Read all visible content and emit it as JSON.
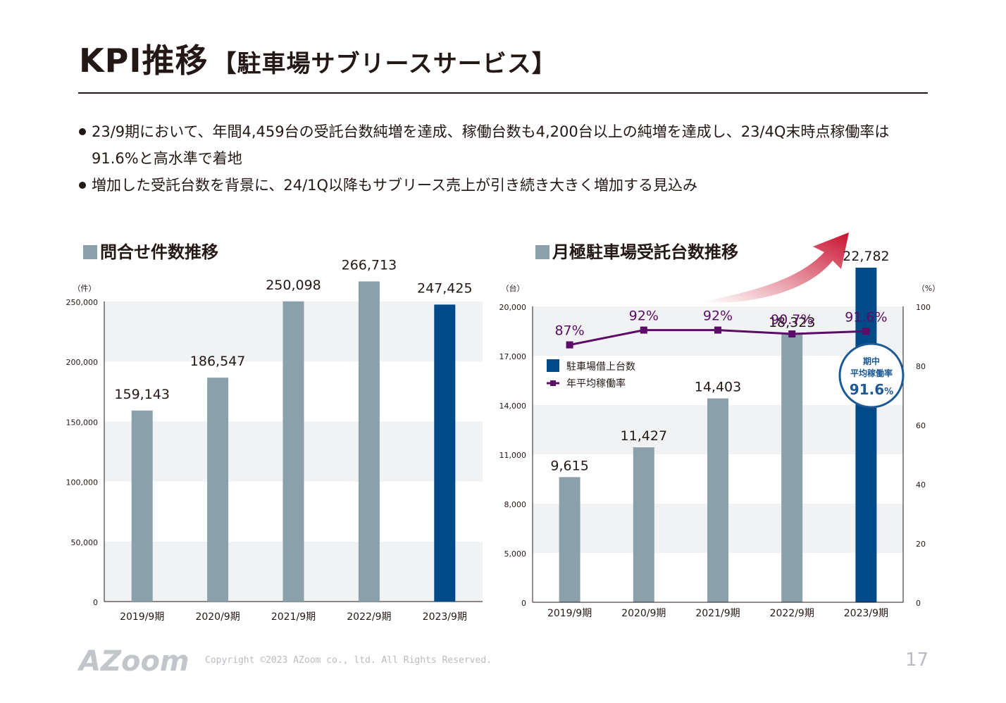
{
  "header": {
    "title_main": "KPI推移",
    "title_sub": "【駐車場サブリースサービス】"
  },
  "bullets": [
    "23/9期において、年間4,459台の受託台数純増を達成、稼働台数も4,200台以上の純増を達成し、23/4Q末時点稼働率は91.6%と高水準で着地",
    "増加した受託台数を背景に、24/1Q以降もサブリース売上が引き続き大きく増加する見込み"
  ],
  "colors": {
    "bar_past": "#8aa0aa",
    "bar_current": "#004a87",
    "line": "#5b0c66",
    "arrow": "#c8102e",
    "band": "#f1f2f4",
    "badge": "#1c5a96"
  },
  "chart_data": [
    {
      "type": "bar",
      "title": "問合せ件数推移",
      "unit_label": "（件）",
      "categories": [
        "2019/9期",
        "2020/9期",
        "2021/9期",
        "2022/9期",
        "2023/9期"
      ],
      "values": [
        159143,
        186547,
        250098,
        266713,
        247425
      ],
      "value_labels": [
        "159,143",
        "186,547",
        "250,098",
        "266,713",
        "247,425"
      ],
      "ylim": [
        0,
        250000
      ],
      "yticks": [
        "0",
        "50,000",
        "100,000",
        "150,000",
        "200,000",
        "250,000"
      ],
      "highlight_index": 4
    },
    {
      "type": "bar",
      "title": "月極駐車場受託台数推移",
      "unit_label_left": "（台）",
      "unit_label_right": "（%）",
      "categories": [
        "2019/9期",
        "2020/9期",
        "2021/9期",
        "2022/9期",
        "2023/9期"
      ],
      "series": [
        {
          "name": "駐車場借上台数",
          "type": "bar",
          "values": [
            9615,
            11427,
            14403,
            18323,
            22782
          ],
          "value_labels": [
            "9,615",
            "11,427",
            "14,403",
            "18,323",
            "22,782"
          ]
        },
        {
          "name": "年平均稼働率",
          "type": "line",
          "values": [
            87,
            92,
            92,
            90.7,
            91.6
          ],
          "value_labels": [
            "87%",
            "92%",
            "92%",
            "90.7%",
            "91.6%"
          ]
        }
      ],
      "ylim_left": [
        0,
        20000
      ],
      "yticks_left": [
        "0",
        "5,000",
        "8,000",
        "11,000",
        "14,000",
        "17,000",
        "20,000"
      ],
      "ylim_right": [
        0,
        100
      ],
      "yticks_right": [
        "0",
        "20",
        "40",
        "60",
        "80",
        "100"
      ],
      "badge": {
        "line1": "期中",
        "line2": "平均稼働率",
        "value": "91.6",
        "unit": "%"
      },
      "highlight_index": 4
    }
  ],
  "footer": {
    "logo_text": "AZoom",
    "copyright": "Copyright ©2023 AZoom co., ltd. All Rights Reserved.",
    "page": "17"
  }
}
